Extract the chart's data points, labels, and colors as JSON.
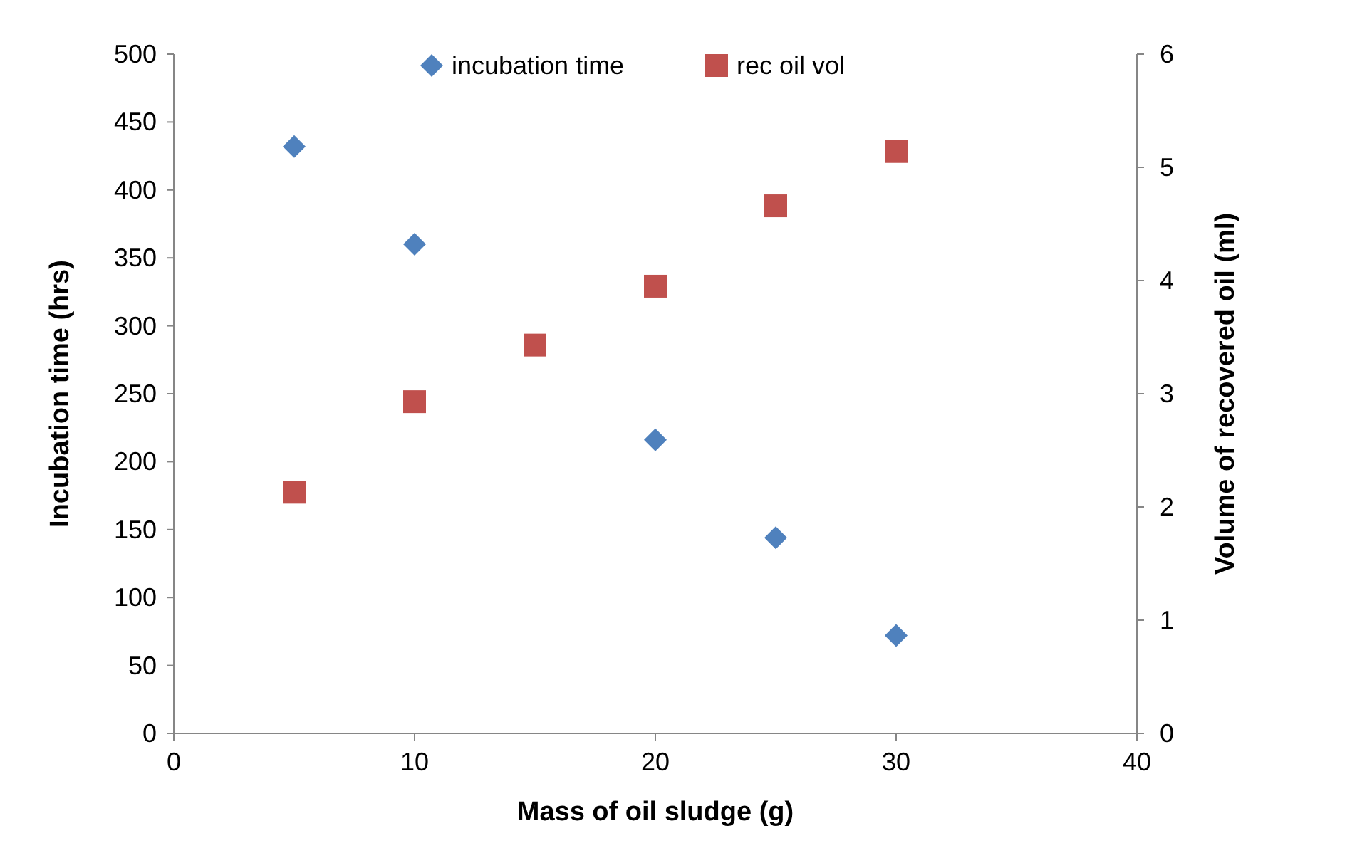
{
  "chart_data": {
    "type": "scatter",
    "xlabel": "Mass of oil sludge (g)",
    "ylabel": "Incubation time (hrs)",
    "y2label": "Volume of recovered oil (ml)",
    "x": [
      5,
      10,
      15,
      20,
      25,
      30
    ],
    "series": [
      {
        "name": "incubation time",
        "color": "#4f81bd",
        "marker": "diamond",
        "values": [
          432,
          360,
          null,
          216,
          144,
          72
        ]
      },
      {
        "name": "rec oil vol",
        "color": "#c0504d",
        "marker": "square",
        "axis": "y2",
        "values": [
          2.13,
          2.93,
          3.43,
          3.95,
          4.66,
          5.14
        ]
      }
    ],
    "xlim": [
      0,
      40
    ],
    "xticks": [
      0,
      10,
      20,
      30,
      40
    ],
    "ylim": [
      0,
      500
    ],
    "yticks": [
      0,
      50,
      100,
      150,
      200,
      250,
      300,
      350,
      400,
      450,
      500
    ],
    "y2lim": [
      0,
      6
    ],
    "y2ticks": [
      0,
      1,
      2,
      3,
      4,
      5,
      6
    ],
    "grid": false,
    "legend": "top"
  }
}
